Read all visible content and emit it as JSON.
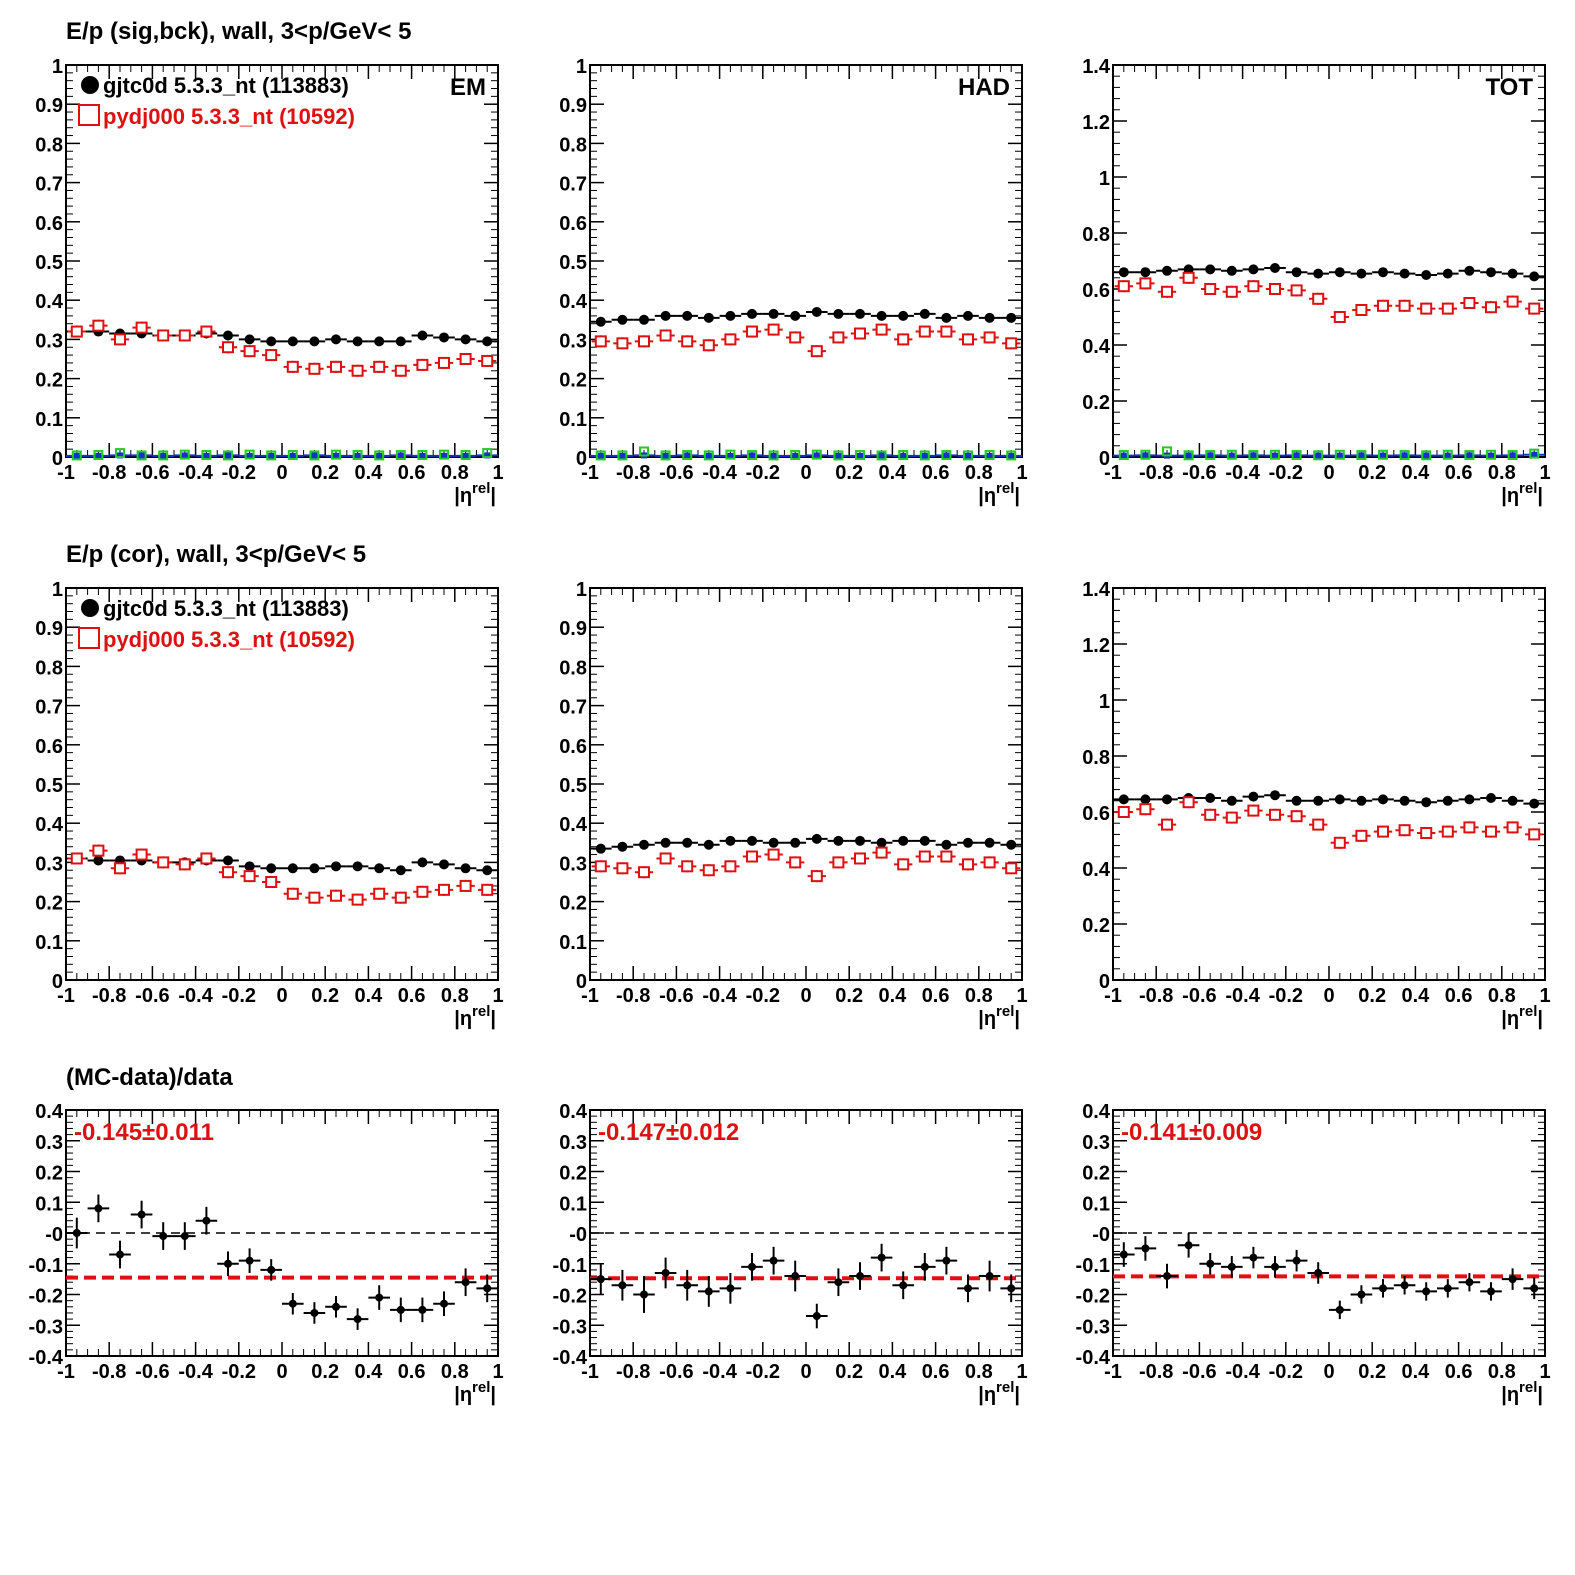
{
  "rows": [
    {
      "title": "E/p (sig,bck), wall,  3<p/GeV< 5"
    },
    {
      "title": "E/p (cor), wall,  3<p/GeV< 5"
    },
    {
      "title": "(MC-data)/data"
    }
  ],
  "legend": {
    "data_label": "gjtc0d 5.3.3_nt (113883)",
    "mc_label": "pydj000 5.3.3_nt (10592)"
  },
  "colors": {
    "data": "#000000",
    "mc": "#dd1111",
    "bkg_data": "#1133cc",
    "bkg_mc": "#22cc22",
    "fit": "#dd1111"
  },
  "chart_data": [
    {
      "id": "sig-em",
      "type": "scatter",
      "panel_label": "EM",
      "xlabel": "|η^rel|",
      "xlim": [
        -1,
        1
      ],
      "ylim": [
        0,
        1
      ],
      "y_ticks": [
        "0",
        "0.1",
        "0.2",
        "0.3",
        "0.4",
        "0.5",
        "0.6",
        "0.7",
        "0.8",
        "0.9",
        "1"
      ],
      "x_ticks": [
        "-1",
        "-0.8",
        "-0.6",
        "-0.4",
        "-0.2",
        "0",
        "0.2",
        "0.4",
        "0.6",
        "0.8",
        "1"
      ],
      "legend": true,
      "series": [
        {
          "name": "gjtc0d 5.3.3_nt (113883)",
          "style": "data",
          "values": [
            0.32,
            0.32,
            0.315,
            0.315,
            0.31,
            0.31,
            0.315,
            0.31,
            0.3,
            0.295,
            0.295,
            0.295,
            0.3,
            0.295,
            0.295,
            0.295,
            0.31,
            0.305,
            0.3,
            0.295
          ]
        },
        {
          "name": "pydj000 5.3.3_nt (10592)",
          "style": "mc",
          "values": [
            0.32,
            0.335,
            0.3,
            0.33,
            0.31,
            0.31,
            0.32,
            0.28,
            0.27,
            0.26,
            0.23,
            0.225,
            0.23,
            0.22,
            0.23,
            0.22,
            0.235,
            0.24,
            0.25,
            0.245
          ]
        },
        {
          "name": "",
          "style": "bkg_data",
          "values": [
            0.003,
            0.003,
            0.004,
            0.004,
            0.003,
            0.004,
            0.003,
            0.004,
            0.003,
            0.003,
            0.003,
            0.004,
            0.003,
            0.003,
            0.003,
            0.004,
            0.003,
            0.003,
            0.003,
            0.004
          ]
        },
        {
          "name": "",
          "style": "bkg_mc",
          "values": [
            0.004,
            0.005,
            0.01,
            0.004,
            0.004,
            0.006,
            0.005,
            0.004,
            0.006,
            0.004,
            0.005,
            0.004,
            0.006,
            0.005,
            0.004,
            0.005,
            0.005,
            0.006,
            0.005,
            0.01
          ]
        }
      ]
    },
    {
      "id": "sig-had",
      "type": "scatter",
      "panel_label": "HAD",
      "xlabel": "|η^rel|",
      "xlim": [
        -1,
        1
      ],
      "ylim": [
        0,
        1
      ],
      "y_ticks": [
        "0",
        "0.1",
        "0.2",
        "0.3",
        "0.4",
        "0.5",
        "0.6",
        "0.7",
        "0.8",
        "0.9",
        "1"
      ],
      "x_ticks": [
        "-1",
        "-0.8",
        "-0.6",
        "-0.4",
        "-0.2",
        "0",
        "0.2",
        "0.4",
        "0.6",
        "0.8",
        "1"
      ],
      "legend": false,
      "series": [
        {
          "name": "gjtc0d 5.3.3_nt (113883)",
          "style": "data",
          "values": [
            0.345,
            0.35,
            0.35,
            0.36,
            0.36,
            0.355,
            0.36,
            0.365,
            0.365,
            0.36,
            0.37,
            0.365,
            0.365,
            0.36,
            0.36,
            0.365,
            0.355,
            0.36,
            0.355,
            0.355
          ]
        },
        {
          "name": "pydj000 5.3.3_nt (10592)",
          "style": "mc",
          "values": [
            0.295,
            0.29,
            0.295,
            0.31,
            0.295,
            0.285,
            0.3,
            0.32,
            0.325,
            0.305,
            0.27,
            0.305,
            0.315,
            0.325,
            0.3,
            0.32,
            0.32,
            0.3,
            0.305,
            0.29
          ]
        },
        {
          "name": "",
          "style": "bkg_data",
          "values": [
            0.003,
            0.003,
            0.004,
            0.003,
            0.004,
            0.003,
            0.003,
            0.004,
            0.003,
            0.003,
            0.004,
            0.003,
            0.003,
            0.004,
            0.003,
            0.003,
            0.004,
            0.003,
            0.003,
            0.003
          ]
        },
        {
          "name": "",
          "style": "bkg_mc",
          "values": [
            0.004,
            0.004,
            0.014,
            0.004,
            0.005,
            0.004,
            0.006,
            0.005,
            0.004,
            0.005,
            0.006,
            0.004,
            0.005,
            0.004,
            0.005,
            0.004,
            0.005,
            0.004,
            0.005,
            0.004
          ]
        }
      ]
    },
    {
      "id": "sig-tot",
      "type": "scatter",
      "panel_label": "TOT",
      "xlabel": "|η^rel|",
      "xlim": [
        -1,
        1
      ],
      "ylim": [
        0,
        1.4
      ],
      "y_ticks": [
        "0",
        "0.2",
        "0.4",
        "0.6",
        "0.8",
        "1",
        "1.2",
        "1.4"
      ],
      "x_ticks": [
        "-1",
        "-0.8",
        "-0.6",
        "-0.4",
        "-0.2",
        "0",
        "0.2",
        "0.4",
        "0.6",
        "0.8",
        "1"
      ],
      "legend": false,
      "series": [
        {
          "name": "gjtc0d 5.3.3_nt (113883)",
          "style": "data",
          "values": [
            0.66,
            0.66,
            0.665,
            0.67,
            0.67,
            0.665,
            0.67,
            0.675,
            0.66,
            0.655,
            0.66,
            0.655,
            0.66,
            0.655,
            0.65,
            0.655,
            0.665,
            0.66,
            0.655,
            0.645
          ]
        },
        {
          "name": "pydj000 5.3.3_nt (10592)",
          "style": "mc",
          "values": [
            0.61,
            0.62,
            0.59,
            0.64,
            0.6,
            0.59,
            0.61,
            0.6,
            0.595,
            0.565,
            0.5,
            0.525,
            0.54,
            0.54,
            0.53,
            0.53,
            0.55,
            0.535,
            0.555,
            0.53
          ]
        },
        {
          "name": "",
          "style": "bkg_data",
          "values": [
            0.005,
            0.006,
            0.005,
            0.005,
            0.006,
            0.005,
            0.006,
            0.005,
            0.006,
            0.005,
            0.005,
            0.006,
            0.005,
            0.006,
            0.005,
            0.005,
            0.006,
            0.005,
            0.006,
            0.008
          ]
        },
        {
          "name": "",
          "style": "bkg_mc",
          "values": [
            0.007,
            0.008,
            0.02,
            0.006,
            0.007,
            0.008,
            0.007,
            0.008,
            0.007,
            0.006,
            0.008,
            0.007,
            0.008,
            0.007,
            0.006,
            0.008,
            0.007,
            0.008,
            0.007,
            0.012
          ]
        }
      ]
    },
    {
      "id": "cor-em",
      "type": "scatter",
      "panel_label": "",
      "xlabel": "|η^rel|",
      "xlim": [
        -1,
        1
      ],
      "ylim": [
        0,
        1
      ],
      "y_ticks": [
        "0",
        "0.1",
        "0.2",
        "0.3",
        "0.4",
        "0.5",
        "0.6",
        "0.7",
        "0.8",
        "0.9",
        "1"
      ],
      "x_ticks": [
        "-1",
        "-0.8",
        "-0.6",
        "-0.4",
        "-0.2",
        "0",
        "0.2",
        "0.4",
        "0.6",
        "0.8",
        "1"
      ],
      "legend": true,
      "series": [
        {
          "name": "gjtc0d 5.3.3_nt (113883)",
          "style": "data",
          "values": [
            0.31,
            0.305,
            0.305,
            0.305,
            0.3,
            0.3,
            0.305,
            0.305,
            0.29,
            0.285,
            0.285,
            0.285,
            0.29,
            0.29,
            0.285,
            0.28,
            0.3,
            0.295,
            0.285,
            0.28
          ]
        },
        {
          "name": "pydj000 5.3.3_nt (10592)",
          "style": "mc",
          "values": [
            0.31,
            0.33,
            0.285,
            0.32,
            0.3,
            0.295,
            0.31,
            0.275,
            0.265,
            0.25,
            0.22,
            0.21,
            0.215,
            0.205,
            0.22,
            0.21,
            0.225,
            0.23,
            0.24,
            0.23
          ]
        }
      ]
    },
    {
      "id": "cor-had",
      "type": "scatter",
      "panel_label": "",
      "xlabel": "|η^rel|",
      "xlim": [
        -1,
        1
      ],
      "ylim": [
        0,
        1
      ],
      "y_ticks": [
        "0",
        "0.1",
        "0.2",
        "0.3",
        "0.4",
        "0.5",
        "0.6",
        "0.7",
        "0.8",
        "0.9",
        "1"
      ],
      "x_ticks": [
        "-1",
        "-0.8",
        "-0.6",
        "-0.4",
        "-0.2",
        "0",
        "0.2",
        "0.4",
        "0.6",
        "0.8",
        "1"
      ],
      "legend": false,
      "series": [
        {
          "name": "gjtc0d 5.3.3_nt (113883)",
          "style": "data",
          "values": [
            0.335,
            0.34,
            0.345,
            0.35,
            0.35,
            0.345,
            0.355,
            0.355,
            0.35,
            0.35,
            0.36,
            0.355,
            0.355,
            0.35,
            0.355,
            0.355,
            0.345,
            0.35,
            0.35,
            0.345
          ]
        },
        {
          "name": "pydj000 5.3.3_nt (10592)",
          "style": "mc",
          "values": [
            0.29,
            0.285,
            0.275,
            0.31,
            0.29,
            0.28,
            0.29,
            0.315,
            0.32,
            0.3,
            0.265,
            0.3,
            0.31,
            0.325,
            0.295,
            0.315,
            0.315,
            0.295,
            0.3,
            0.285
          ]
        }
      ]
    },
    {
      "id": "cor-tot",
      "type": "scatter",
      "panel_label": "",
      "xlabel": "|η^rel|",
      "xlim": [
        -1,
        1
      ],
      "ylim": [
        0,
        1.4
      ],
      "y_ticks": [
        "0",
        "0.2",
        "0.4",
        "0.6",
        "0.8",
        "1",
        "1.2",
        "1.4"
      ],
      "x_ticks": [
        "-1",
        "-0.8",
        "-0.6",
        "-0.4",
        "-0.2",
        "0",
        "0.2",
        "0.4",
        "0.6",
        "0.8",
        "1"
      ],
      "legend": false,
      "series": [
        {
          "name": "gjtc0d 5.3.3_nt (113883)",
          "style": "data",
          "values": [
            0.645,
            0.645,
            0.645,
            0.65,
            0.65,
            0.64,
            0.655,
            0.66,
            0.64,
            0.64,
            0.645,
            0.64,
            0.645,
            0.64,
            0.635,
            0.64,
            0.645,
            0.65,
            0.64,
            0.63
          ]
        },
        {
          "name": "pydj000 5.3.3_nt (10592)",
          "style": "mc",
          "values": [
            0.6,
            0.61,
            0.555,
            0.635,
            0.59,
            0.58,
            0.605,
            0.59,
            0.585,
            0.555,
            0.49,
            0.515,
            0.53,
            0.535,
            0.525,
            0.53,
            0.545,
            0.53,
            0.545,
            0.52
          ]
        }
      ]
    },
    {
      "id": "ratio-em",
      "type": "scatter",
      "panel_label": "",
      "fit_label": "-0.145±0.011",
      "fit_value": -0.145,
      "xlabel": "|η^rel|",
      "xlim": [
        -1,
        1
      ],
      "ylim": [
        -0.4,
        0.4
      ],
      "y_ticks": [
        "-0.4",
        "-0.3",
        "-0.2",
        "-0.1",
        "-0",
        "0.1",
        "0.2",
        "0.3",
        "0.4"
      ],
      "x_ticks": [
        "-1",
        "-0.8",
        "-0.6",
        "-0.4",
        "-0.2",
        "0",
        "0.2",
        "0.4",
        "0.6",
        "0.8",
        "1"
      ],
      "legend": false,
      "series": [
        {
          "name": "(MC-data)/data",
          "style": "ratio",
          "values": [
            0.0,
            0.08,
            -0.07,
            0.06,
            -0.01,
            -0.01,
            0.04,
            -0.1,
            -0.09,
            -0.12,
            -0.23,
            -0.26,
            -0.24,
            -0.28,
            -0.21,
            -0.25,
            -0.25,
            -0.23,
            -0.16,
            -0.18
          ],
          "errors": [
            0.05,
            0.045,
            0.045,
            0.045,
            0.045,
            0.045,
            0.045,
            0.04,
            0.04,
            0.035,
            0.035,
            0.035,
            0.035,
            0.035,
            0.04,
            0.04,
            0.04,
            0.04,
            0.045,
            0.045
          ]
        }
      ]
    },
    {
      "id": "ratio-had",
      "type": "scatter",
      "panel_label": "",
      "fit_label": "-0.147±0.012",
      "fit_value": -0.147,
      "xlabel": "|η^rel|",
      "xlim": [
        -1,
        1
      ],
      "ylim": [
        -0.4,
        0.4
      ],
      "y_ticks": [
        "-0.4",
        "-0.3",
        "-0.2",
        "-0.1",
        "-0",
        "0.1",
        "0.2",
        "0.3",
        "0.4"
      ],
      "x_ticks": [
        "-1",
        "-0.8",
        "-0.6",
        "-0.4",
        "-0.2",
        "0",
        "0.2",
        "0.4",
        "0.6",
        "0.8",
        "1"
      ],
      "legend": false,
      "series": [
        {
          "name": "(MC-data)/data",
          "style": "ratio",
          "values": [
            -0.15,
            -0.17,
            -0.2,
            -0.13,
            -0.17,
            -0.19,
            -0.18,
            -0.11,
            -0.09,
            -0.14,
            -0.27,
            -0.16,
            -0.14,
            -0.08,
            -0.17,
            -0.11,
            -0.09,
            -0.18,
            -0.14,
            -0.18
          ],
          "errors": [
            0.05,
            0.05,
            0.06,
            0.05,
            0.05,
            0.05,
            0.05,
            0.045,
            0.045,
            0.05,
            0.04,
            0.045,
            0.045,
            0.045,
            0.045,
            0.045,
            0.045,
            0.045,
            0.05,
            0.045
          ]
        }
      ]
    },
    {
      "id": "ratio-tot",
      "type": "scatter",
      "panel_label": "",
      "fit_label": "-0.141±0.009",
      "fit_value": -0.141,
      "xlabel": "|η^rel|",
      "xlim": [
        -1,
        1
      ],
      "ylim": [
        -0.4,
        0.4
      ],
      "y_ticks": [
        "-0.4",
        "-0.3",
        "-0.2",
        "-0.1",
        "-0",
        "0.1",
        "0.2",
        "0.3",
        "0.4"
      ],
      "x_ticks": [
        "-1",
        "-0.8",
        "-0.6",
        "-0.4",
        "-0.2",
        "0",
        "0.2",
        "0.4",
        "0.6",
        "0.8",
        "1"
      ],
      "legend": false,
      "series": [
        {
          "name": "(MC-data)/data",
          "style": "ratio",
          "values": [
            -0.07,
            -0.05,
            -0.14,
            -0.04,
            -0.1,
            -0.11,
            -0.08,
            -0.11,
            -0.09,
            -0.13,
            -0.25,
            -0.2,
            -0.18,
            -0.17,
            -0.19,
            -0.18,
            -0.16,
            -0.19,
            -0.15,
            -0.18
          ],
          "errors": [
            0.04,
            0.04,
            0.04,
            0.04,
            0.035,
            0.035,
            0.035,
            0.035,
            0.035,
            0.035,
            0.03,
            0.03,
            0.03,
            0.03,
            0.03,
            0.03,
            0.03,
            0.03,
            0.035,
            0.035
          ]
        }
      ]
    }
  ]
}
